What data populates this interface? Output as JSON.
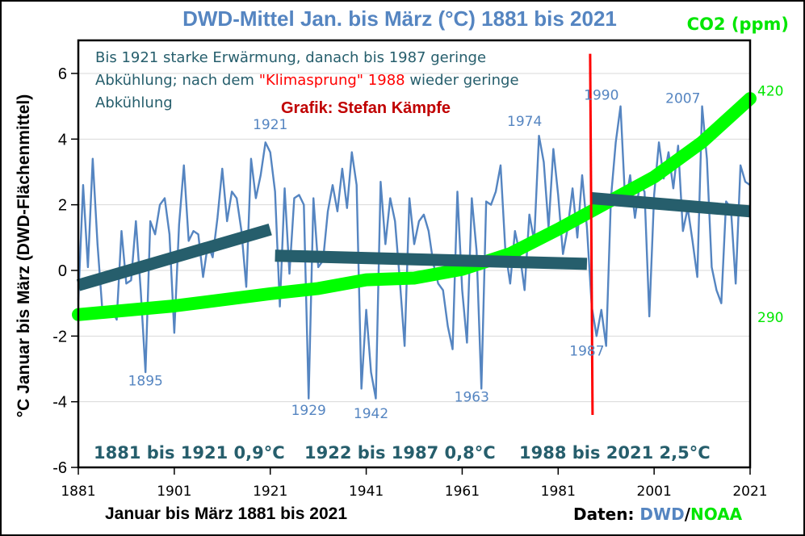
{
  "chart_data": {
    "type": "line",
    "title": "DWD-Mittel Jan. bis März (°C) 1881 bis 2021",
    "xlabel": "Januar bis März 1881 bis 2021",
    "ylabel": "°C Januar bis März (DWD-Flächenmittel)",
    "y2label": "CO2 (ppm)",
    "ylim": [
      -6,
      7
    ],
    "yticks": [
      "6",
      "4",
      "2",
      "0",
      "-2",
      "-4",
      "-6"
    ],
    "ytick_values": [
      6,
      4,
      2,
      0,
      -2,
      -4,
      -6
    ],
    "y2ticks": [
      {
        "label": "420",
        "value": 420
      },
      {
        "label": "290",
        "value": 290
      }
    ],
    "y2lim_ref": {
      "low_ppm": 290,
      "low_at_temp": -1.4,
      "high_ppm": 420,
      "high_at_temp": 5.5
    },
    "xlim": [
      1881,
      2021
    ],
    "xticks": [
      "1881",
      "1901",
      "1921",
      "1941",
      "1961",
      "1981",
      "2001",
      "2021"
    ],
    "xtick_values": [
      1881,
      1901,
      1921,
      1941,
      1961,
      1981,
      2001,
      2021
    ],
    "grid": true,
    "series": [
      {
        "name": "DWD Jan-März Temperatur",
        "color": "#5585c1",
        "start_year": 1881,
        "values": [
          -0.9,
          2.6,
          0.1,
          3.4,
          0.8,
          -1.2,
          -1.1,
          -1.2,
          -1.5,
          1.2,
          -0.4,
          -0.3,
          1.5,
          -0.6,
          -3.1,
          1.5,
          1.1,
          2.0,
          2.2,
          1.1,
          -1.9,
          1.4,
          3.2,
          0.9,
          1.2,
          1.1,
          -0.2,
          0.8,
          0.4,
          1.6,
          3.1,
          1.5,
          2.4,
          2.2,
          1.2,
          -0.5,
          3.4,
          2.2,
          2.9,
          3.9,
          3.6,
          2.4,
          -1.1,
          2.5,
          -0.1,
          2.2,
          2.3,
          2.0,
          -3.9,
          2.2,
          0.1,
          0.3,
          1.8,
          2.6,
          1.8,
          3.1,
          1.9,
          3.6,
          2.6,
          -3.6,
          -1.2,
          -3.1,
          -3.9,
          2.7,
          0.8,
          2.2,
          1.5,
          -0.3,
          -2.3,
          2.2,
          0.8,
          1.5,
          1.7,
          1.2,
          0.2,
          -0.4,
          -0.6,
          -1.7,
          -2.4,
          2.4,
          -0.6,
          -2.2,
          2.2,
          0.6,
          -3.6,
          2.1,
          2.0,
          2.4,
          3.2,
          0.6,
          -0.4,
          1.2,
          0.5,
          -0.6,
          1.7,
          0.9,
          4.1,
          3.3,
          1.3,
          3.7,
          2.3,
          0.5,
          1.3,
          2.5,
          1.0,
          2.9,
          1.3,
          -1.1,
          -2.0,
          -1.2,
          -2.3,
          2.2,
          3.9,
          5.0,
          2.0,
          2.9,
          1.6,
          2.6,
          2.4,
          -1.4,
          2.3,
          3.9,
          2.8,
          3.6,
          2.5,
          3.8,
          1.2,
          1.9,
          0.9,
          -0.2,
          5.0,
          3.4,
          0.1,
          -0.6,
          -1.0,
          2.1,
          1.9,
          -0.4,
          3.2,
          2.7,
          2.6
        ]
      },
      {
        "name": "CO2 (ppm)",
        "color": "#00ff00",
        "axis": "secondary",
        "start_year": 1881,
        "points": [
          [
            1881,
            291
          ],
          [
            1901,
            296
          ],
          [
            1921,
            303
          ],
          [
            1931,
            306
          ],
          [
            1941,
            311
          ],
          [
            1951,
            312
          ],
          [
            1961,
            317
          ],
          [
            1971,
            326
          ],
          [
            1981,
            340
          ],
          [
            1991,
            355
          ],
          [
            2001,
            370
          ],
          [
            2011,
            390
          ],
          [
            2021,
            415
          ]
        ]
      },
      {
        "name": "Trend 1881-1921",
        "color": "#265e6c",
        "segment": [
          [
            1881,
            -0.45
          ],
          [
            1921,
            1.25
          ]
        ]
      },
      {
        "name": "Trend 1922-1987",
        "color": "#265e6c",
        "segment": [
          [
            1922,
            0.45
          ],
          [
            1987,
            0.2
          ]
        ]
      },
      {
        "name": "Trend 1988-2021",
        "color": "#265e6c",
        "segment": [
          [
            1988,
            2.2
          ],
          [
            2021,
            1.8
          ]
        ]
      }
    ],
    "vertical_marker": {
      "name": "Klimasprung",
      "year": 1988,
      "color": "#ff0000",
      "from_temp": 6.6,
      "to_temp": -4.4
    },
    "annotations": [
      {
        "text": "1895",
        "year": 1895,
        "value": -3.5
      },
      {
        "text": "1921",
        "year": 1921,
        "value": 4.3
      },
      {
        "text": "1929",
        "year": 1929,
        "value": -4.4
      },
      {
        "text": "1942",
        "year": 1942,
        "value": -4.5
      },
      {
        "text": "1963",
        "year": 1963,
        "value": -4.0
      },
      {
        "text": "1974",
        "year": 1974,
        "value": 4.4
      },
      {
        "text": "1987",
        "year": 1987,
        "value": -2.6
      },
      {
        "text": "1990",
        "year": 1990,
        "value": 5.2
      },
      {
        "text": "2007",
        "year": 2007,
        "value": 5.1
      }
    ]
  },
  "note": {
    "line1": "Bis 1921 starke Erwärmung, danach bis 1987 geringe",
    "line2_a": "Abkühlung; nach dem ",
    "line2_red": "\"Klimasprung\" 1988",
    "line2_b": " wieder geringe",
    "line3": "Abkühlung"
  },
  "credit": "Grafik: Stefan Kämpfe",
  "periods": [
    {
      "text": "1881 bis 1921 0,9°C"
    },
    {
      "text": "1922 bis 1987 0,8°C"
    },
    {
      "text": "1988 bis 2021 2,5°C"
    }
  ],
  "source": {
    "prefix": "Daten: ",
    "dwd": "DWD",
    "slash": "/",
    "noaa": "NOAA",
    "dwd_color": "#5585c1",
    "noaa_color": "#00e600"
  }
}
